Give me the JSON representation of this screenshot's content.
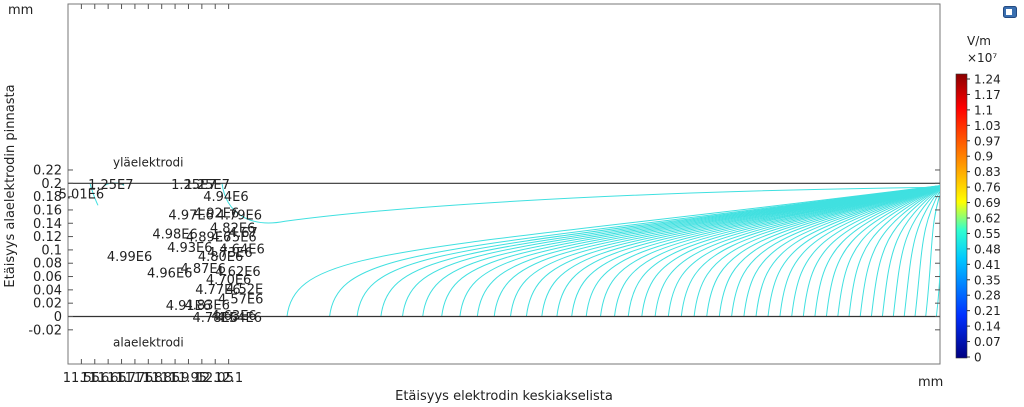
{
  "chart_data": {
    "type": "contour",
    "xlabel": "Etäisyys elektrodin keskiakselista",
    "ylabel": "Etäisyys alaelektrodin pinnasta",
    "x_unit": "mm",
    "y_unit": "mm",
    "xlim": [
      11.5,
      12.17
    ],
    "ylim": [
      -0.035,
      0.23
    ],
    "x_ticks": [
      "11.55",
      "11.6",
      "11.65",
      "11.7",
      "11.75",
      "11.8",
      "11.85",
      "11.9",
      "11.95",
      "12",
      "12.05",
      "12.1"
    ],
    "y_ticks": [
      "-0.02",
      "0",
      "0.02",
      "0.04",
      "0.06",
      "0.08",
      "0.1",
      "0.12",
      "0.14",
      "0.16",
      "0.18",
      "0.2",
      "0.22"
    ],
    "grid": false,
    "electrodes": [
      {
        "label": "yläelektrodi",
        "y": 0.2
      },
      {
        "label": "alaelektrodi",
        "y": 0
      }
    ],
    "contour_color": "#40e0e0",
    "contour_labels": [
      {
        "text": "5.01E6",
        "x": 11.55,
        "y": 0.185
      },
      {
        "text": "1.25E7",
        "x": 11.66,
        "y": 0.199
      },
      {
        "text": "1.25E7",
        "x": 11.97,
        "y": 0.199
      },
      {
        "text": "1.25E7",
        "x": 12.02,
        "y": 0.199
      },
      {
        "text": "4.94E6",
        "x": 12.09,
        "y": 0.181
      },
      {
        "text": "4.97E6",
        "x": 11.96,
        "y": 0.153
      },
      {
        "text": "4.92E6",
        "x": 12.055,
        "y": 0.156
      },
      {
        "text": "4.79E6",
        "x": 12.14,
        "y": 0.153
      },
      {
        "text": "4.82E6",
        "x": 12.115,
        "y": 0.134
      },
      {
        "text": "4.98E6",
        "x": 11.9,
        "y": 0.125
      },
      {
        "text": "4.89E6",
        "x": 12.025,
        "y": 0.12
      },
      {
        "text": "4.75E6",
        "x": 12.12,
        "y": 0.12
      },
      {
        "text": "4.67",
        "x": 12.155,
        "y": 0.127
      },
      {
        "text": "4.93E6",
        "x": 11.955,
        "y": 0.104
      },
      {
        "text": "4.64E6",
        "x": 12.15,
        "y": 0.102
      },
      {
        "text": "4.99E6",
        "x": 11.73,
        "y": 0.091
      },
      {
        "text": "4.73E6",
        "x": 12.105,
        "y": 0.097
      },
      {
        "text": "4.80E6",
        "x": 12.07,
        "y": 0.091
      },
      {
        "text": "4.87E6",
        "x": 12.005,
        "y": 0.073
      },
      {
        "text": "4.62E6",
        "x": 12.135,
        "y": 0.068
      },
      {
        "text": "4.96E6",
        "x": 11.88,
        "y": 0.066
      },
      {
        "text": "4.70E6",
        "x": 12.1,
        "y": 0.056
      },
      {
        "text": "4.77E6",
        "x": 12.06,
        "y": 0.041
      },
      {
        "text": "4.52E",
        "x": 12.16,
        "y": 0.042
      },
      {
        "text": "4.57E6",
        "x": 12.145,
        "y": 0.027
      },
      {
        "text": "4.91E6",
        "x": 11.95,
        "y": 0.017
      },
      {
        "text": "4.83E6",
        "x": 12.02,
        "y": 0.018
      },
      {
        "text": "4.78E6",
        "x": 12.05,
        "y": -0.001
      },
      {
        "text": "4.63E6",
        "x": 12.12,
        "y": 0.002
      },
      {
        "text": "4.54E6",
        "x": 12.14,
        "y": -0.001
      }
    ],
    "colorbar": {
      "unit": "V/m",
      "multiplier": "×10⁷",
      "ticks": [
        "1.24",
        "1.17",
        "1.1",
        "1.03",
        "0.97",
        "0.9",
        "0.83",
        "0.76",
        "0.69",
        "0.62",
        "0.55",
        "0.48",
        "0.41",
        "0.35",
        "0.28",
        "0.21",
        "0.14",
        "0.07",
        "0"
      ],
      "min": 0,
      "max": 1.24,
      "colormap": [
        "#8b0000",
        "#ff0000",
        "#ffa500",
        "#ffff00",
        "#00ffff",
        "#0000ff",
        "#00008b"
      ]
    }
  }
}
